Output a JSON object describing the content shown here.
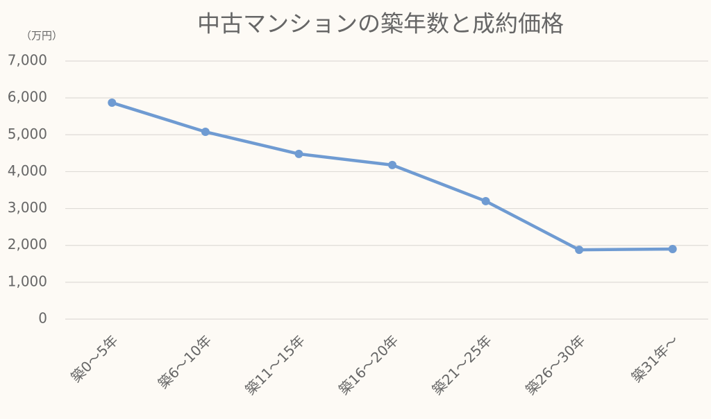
{
  "chart_data": {
    "type": "line",
    "title": "中古マンションの築年数と成約価格",
    "y_unit": "（万円）",
    "categories": [
      "築0～5年",
      "築6～10年",
      "築11～15年",
      "築16～20年",
      "築21～25年",
      "築26～30年",
      "築31年～"
    ],
    "series": [
      {
        "name": "成約価格",
        "color": "#6f9bd2",
        "values": [
          5870,
          5080,
          4480,
          4180,
          3200,
          1880,
          1900
        ]
      }
    ],
    "ylim": [
      0,
      7000
    ],
    "yticks": [
      0,
      {
        "value": 1000,
        "label": "1,000"
      },
      {
        "value": 2000,
        "label": "2,000"
      },
      {
        "value": 3000,
        "label": "3,000"
      },
      {
        "value": 4000,
        "label": "4,000"
      },
      {
        "value": 5000,
        "label": "5,000"
      },
      {
        "value": 6000,
        "label": "6,000"
      },
      {
        "value": 7000,
        "label": "7,000"
      }
    ],
    "grid": true
  }
}
